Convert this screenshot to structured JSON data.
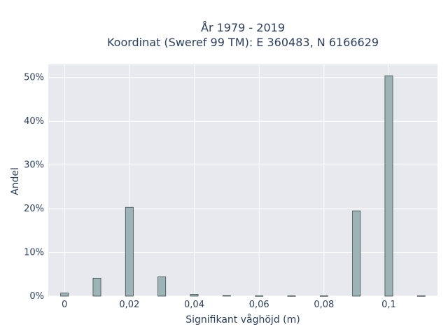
{
  "chart_data": {
    "type": "bar",
    "title_lines": [
      "År 1979 - 2019",
      "Koordinat (Sweref 99 TM): E 360483, N 6166629"
    ],
    "xlabel": "Signifikant våghöjd (m)",
    "ylabel": "Andel",
    "x": [
      0,
      0.01,
      0.02,
      0.03,
      0.04,
      0.05,
      0.06,
      0.07,
      0.08,
      0.09,
      0.1,
      0.11
    ],
    "values": [
      0.7,
      4.1,
      20.3,
      4.4,
      0.4,
      0.1,
      0.05,
      0.05,
      0.05,
      19.5,
      50.4,
      0.05
    ],
    "xlim": [
      -0.005,
      0.115
    ],
    "ylim": [
      0,
      53
    ],
    "x_ticks": [
      0,
      0.02,
      0.04,
      0.06,
      0.08,
      0.1
    ],
    "x_tick_labels": [
      "0",
      "0,02",
      "0,04",
      "0,06",
      "0,08",
      "0,1"
    ],
    "y_ticks": [
      0,
      10,
      20,
      30,
      40,
      50
    ],
    "y_tick_labels": [
      "0%",
      "10%",
      "20%",
      "30%",
      "40%",
      "50%"
    ],
    "grid": true,
    "colors": {
      "bar_fill": "#9db4b6",
      "bar_stroke": "#3a4a4a",
      "plot_bg": "#e8e8ef",
      "grid": "#ffffff",
      "text": "#2a3f5f"
    }
  }
}
